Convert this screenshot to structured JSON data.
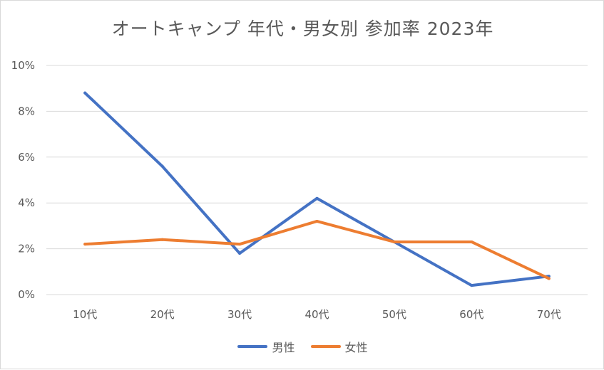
{
  "chart_data": {
    "type": "line",
    "title": "オートキャンプ 年代・男女別 参加率 2023年",
    "categories": [
      "10代",
      "20代",
      "30代",
      "40代",
      "50代",
      "60代",
      "70代"
    ],
    "series": [
      {
        "name": "男性",
        "color": "#4472c4",
        "values": [
          8.8,
          5.6,
          1.8,
          4.2,
          2.3,
          0.4,
          0.8
        ]
      },
      {
        "name": "女性",
        "color": "#ed7d31",
        "values": [
          2.2,
          2.4,
          2.2,
          3.2,
          2.3,
          2.3,
          0.7
        ]
      }
    ],
    "ylim": [
      0,
      10
    ],
    "yticks": [
      "0%",
      "2%",
      "4%",
      "6%",
      "8%",
      "10%"
    ],
    "ytick_values": [
      0,
      2,
      4,
      6,
      8,
      10
    ],
    "xlabel": "",
    "ylabel": "",
    "grid": true,
    "legend_position": "bottom"
  }
}
